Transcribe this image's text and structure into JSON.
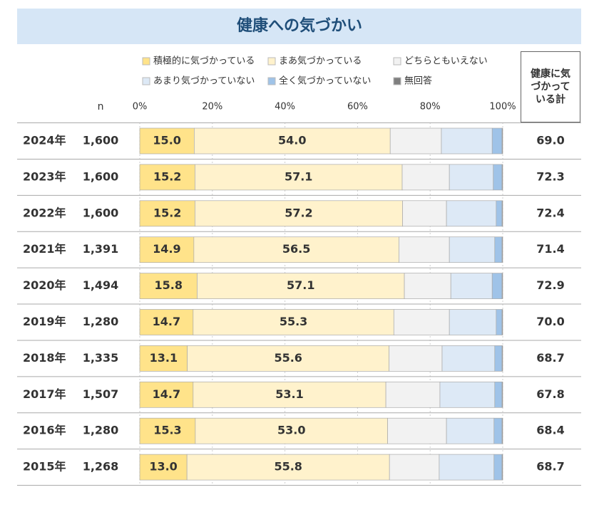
{
  "chart_data": {
    "type": "stacked-bar-horizontal",
    "title": "健康への気づかい",
    "categories": [
      "2024年",
      "2023年",
      "2022年",
      "2021年",
      "2020年",
      "2019年",
      "2018年",
      "2017年",
      "2016年",
      "2015年"
    ],
    "n_column": {
      "header": "n",
      "values": [
        1600,
        1600,
        1600,
        1391,
        1494,
        1280,
        1335,
        1507,
        1280,
        1268
      ],
      "value_labels": [
        "1,600",
        "1,600",
        "1,600",
        "1,391",
        "1,494",
        "1,280",
        "1,335",
        "1,507",
        "1,280",
        "1,268"
      ]
    },
    "total_column": {
      "header": "健康に気づかっている計",
      "values": [
        69.0,
        72.3,
        72.4,
        71.4,
        72.9,
        70.0,
        68.7,
        67.8,
        68.4,
        68.7
      ],
      "value_labels": [
        "69.0",
        "72.3",
        "72.4",
        "71.4",
        "72.9",
        "70.0",
        "68.7",
        "67.8",
        "68.4",
        "68.7"
      ]
    },
    "xlim": [
      0,
      100
    ],
    "xticks": [
      {
        "value": 0,
        "label": "0%"
      },
      {
        "value": 20,
        "label": "20%"
      },
      {
        "value": 40,
        "label": "40%"
      },
      {
        "value": 60,
        "label": "60%"
      },
      {
        "value": 80,
        "label": "80%"
      },
      {
        "value": 100,
        "label": "100%"
      }
    ],
    "grid": true,
    "series": [
      {
        "name": "積極的に気づかっている",
        "color": "#ffe38a",
        "values": [
          15.0,
          15.2,
          15.2,
          14.9,
          15.8,
          14.7,
          13.1,
          14.7,
          15.3,
          13.0
        ],
        "value_labels": [
          "15.0",
          "15.2",
          "15.2",
          "14.9",
          "15.8",
          "14.7",
          "13.1",
          "14.7",
          "15.3",
          "13.0"
        ]
      },
      {
        "name": "まあ気づかっている",
        "color": "#fff2cc",
        "values": [
          54.0,
          57.1,
          57.2,
          56.5,
          57.1,
          55.3,
          55.6,
          53.1,
          53.0,
          55.8
        ],
        "value_labels": [
          "54.0",
          "57.1",
          "57.2",
          "56.5",
          "57.1",
          "55.3",
          "55.6",
          "53.1",
          "53.0",
          "55.8"
        ]
      },
      {
        "name": "どちらともいえない",
        "color": "#f2f2f2",
        "values": [
          14.1,
          13.0,
          12.1,
          13.9,
          12.8,
          15.3,
          14.6,
          14.9,
          16.2,
          13.7
        ]
      },
      {
        "name": "あまり気づかっていない",
        "color": "#dde9f6",
        "values": [
          14.0,
          12.1,
          13.7,
          12.5,
          11.4,
          12.9,
          14.5,
          15.1,
          13.1,
          15.1
        ]
      },
      {
        "name": "全く気づかっていない",
        "color": "#9fc3e8",
        "values": [
          2.7,
          2.4,
          1.6,
          2.0,
          2.7,
          1.6,
          2.0,
          2.0,
          2.2,
          2.2
        ]
      },
      {
        "name": "無回答",
        "color": "#7f7f7f",
        "values": [
          0.2,
          0.2,
          0.2,
          0.2,
          0.2,
          0.2,
          0.2,
          0.2,
          0.2,
          0.2
        ]
      }
    ]
  }
}
